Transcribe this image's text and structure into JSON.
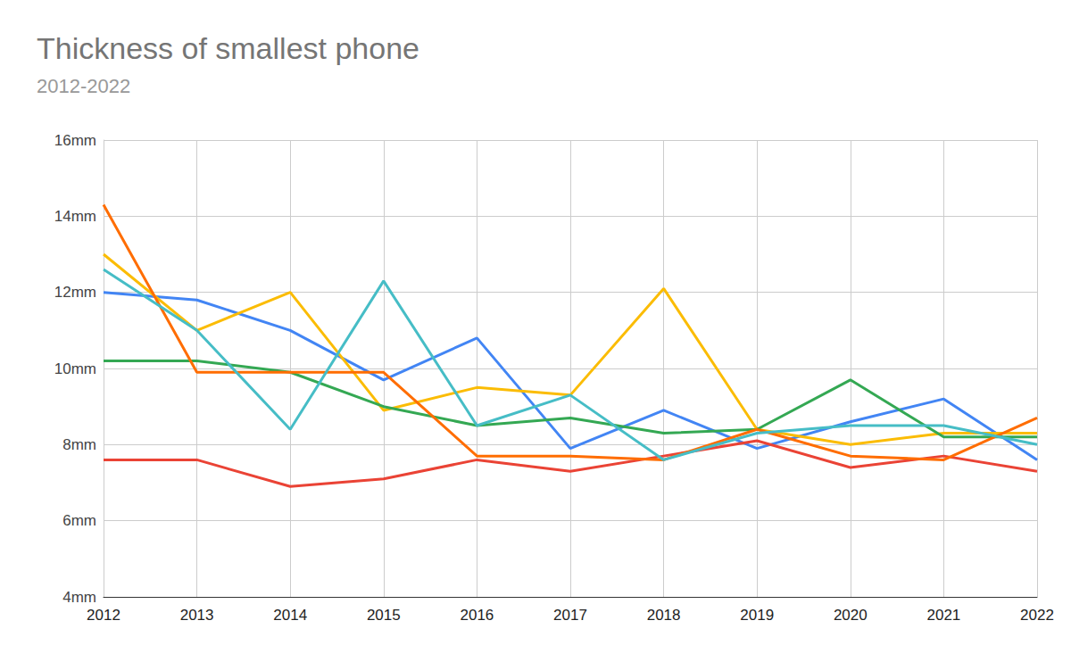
{
  "chart_data": {
    "type": "line",
    "title": "Thickness of smallest phone",
    "subtitle": "2012-2022",
    "categories": [
      "2012",
      "2013",
      "2014",
      "2015",
      "2016",
      "2017",
      "2018",
      "2019",
      "2020",
      "2021",
      "2022"
    ],
    "series": [
      {
        "color": "#4285f4",
        "values": [
          12.0,
          11.8,
          11.0,
          9.7,
          10.8,
          7.9,
          8.9,
          7.9,
          8.6,
          9.2,
          7.6
        ]
      },
      {
        "color": "#ea4335",
        "values": [
          7.6,
          7.6,
          6.9,
          7.1,
          7.6,
          7.3,
          7.7,
          8.1,
          7.4,
          7.7,
          7.3
        ]
      },
      {
        "color": "#fbbc04",
        "values": [
          13.0,
          11.0,
          12.0,
          8.9,
          9.5,
          9.3,
          12.1,
          8.4,
          8.0,
          8.3,
          8.3
        ]
      },
      {
        "color": "#34a853",
        "values": [
          10.2,
          10.2,
          9.9,
          9.0,
          8.5,
          8.7,
          8.3,
          8.4,
          9.7,
          8.2,
          8.2
        ]
      },
      {
        "color": "#ff6d01",
        "values": [
          14.3,
          9.9,
          9.9,
          9.9,
          7.7,
          7.7,
          7.6,
          8.4,
          7.7,
          7.6,
          8.7
        ]
      },
      {
        "color": "#46bdc6",
        "values": [
          12.6,
          11.0,
          8.4,
          12.3,
          8.5,
          9.3,
          7.6,
          8.3,
          8.5,
          8.5,
          8.0
        ]
      }
    ],
    "ylim": [
      4,
      16
    ],
    "yticks": [
      {
        "value": 4,
        "label": "4mm"
      },
      {
        "value": 6,
        "label": "6mm"
      },
      {
        "value": 8,
        "label": "8mm"
      },
      {
        "value": 10,
        "label": "10mm"
      },
      {
        "value": 12,
        "label": "12mm"
      },
      {
        "value": 14,
        "label": "14mm"
      },
      {
        "value": 16,
        "label": "16mm"
      }
    ],
    "grid": true,
    "data_labels": false
  }
}
